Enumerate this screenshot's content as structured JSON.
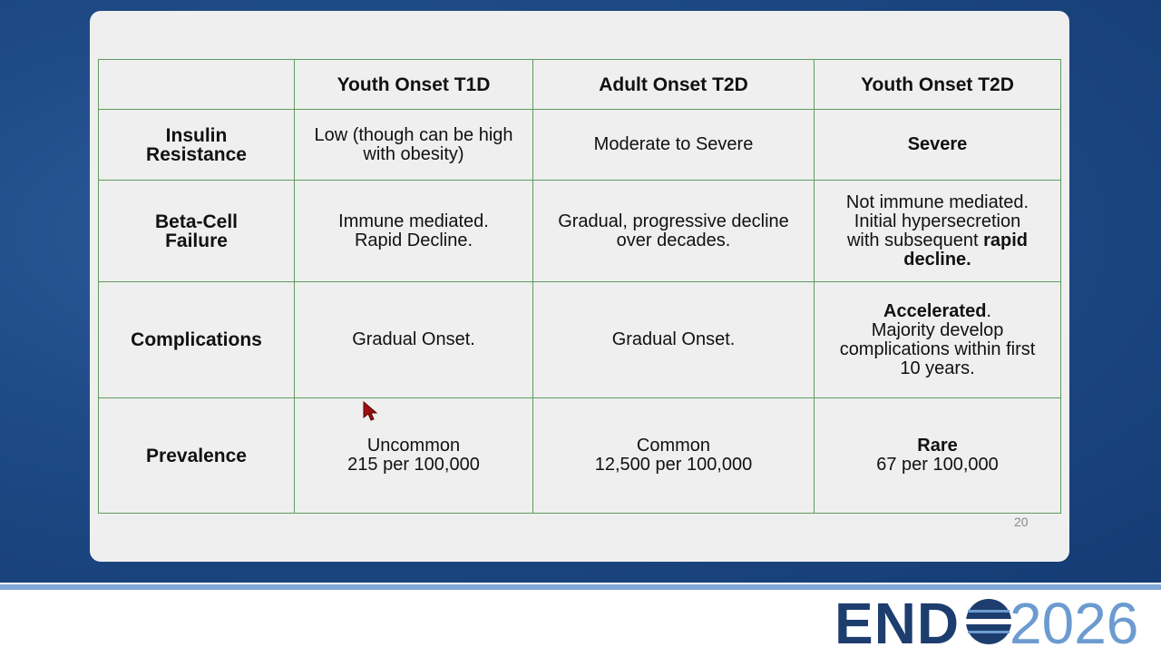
{
  "table": {
    "columns": [
      "Youth Onset T1D",
      "Adult Onset T2D",
      "Youth Onset T2D"
    ],
    "rows": [
      {
        "label": [
          "Insulin",
          "Resistance"
        ],
        "cells": [
          [
            [
              {
                "text": "Low (though can be high"
              }
            ],
            [
              {
                "text": "with obesity)"
              }
            ]
          ],
          [
            [
              {
                "text": "Moderate to Severe"
              }
            ]
          ],
          [
            [
              {
                "text": "Severe",
                "bold": true
              }
            ]
          ]
        ]
      },
      {
        "label": [
          "Beta-Cell",
          "Failure"
        ],
        "cells": [
          [
            [
              {
                "text": "Immune mediated."
              }
            ],
            [
              {
                "text": "Rapid Decline."
              }
            ]
          ],
          [
            [
              {
                "text": "Gradual, progressive decline"
              }
            ],
            [
              {
                "text": "over decades."
              }
            ]
          ],
          [
            [
              {
                "text": "Not immune mediated."
              }
            ],
            [
              {
                "text": "Initial hypersecretion"
              }
            ],
            [
              {
                "text": "with subsequent "
              },
              {
                "text": "rapid",
                "bold": true
              }
            ],
            [
              {
                "text": "decline.",
                "bold": true
              }
            ]
          ]
        ]
      },
      {
        "label": [
          "Complications"
        ],
        "cells": [
          [
            [
              {
                "text": "Gradual Onset."
              }
            ]
          ],
          [
            [
              {
                "text": "Gradual Onset."
              }
            ]
          ],
          [
            [
              {
                "text": "Accelerated",
                "bold": true
              },
              {
                "text": "."
              }
            ],
            [
              {
                "text": "Majority develop"
              }
            ],
            [
              {
                "text": "complications within first"
              }
            ],
            [
              {
                "text": "10 years."
              }
            ]
          ]
        ]
      },
      {
        "label": [
          "Prevalence"
        ],
        "cells": [
          [
            [
              {
                "text": "Uncommon"
              }
            ],
            [
              {
                "text": "215 per 100,000"
              }
            ]
          ],
          [
            [
              {
                "text": "Common"
              }
            ],
            [
              {
                "text": "12,500 per 100,000"
              }
            ]
          ],
          [
            [
              {
                "text": "Rare",
                "bold": true
              }
            ],
            [
              {
                "text": "67 per 100,000"
              }
            ]
          ]
        ]
      }
    ]
  },
  "footer": {
    "page_number": "20",
    "logo": [
      "END",
      "2026"
    ]
  }
}
